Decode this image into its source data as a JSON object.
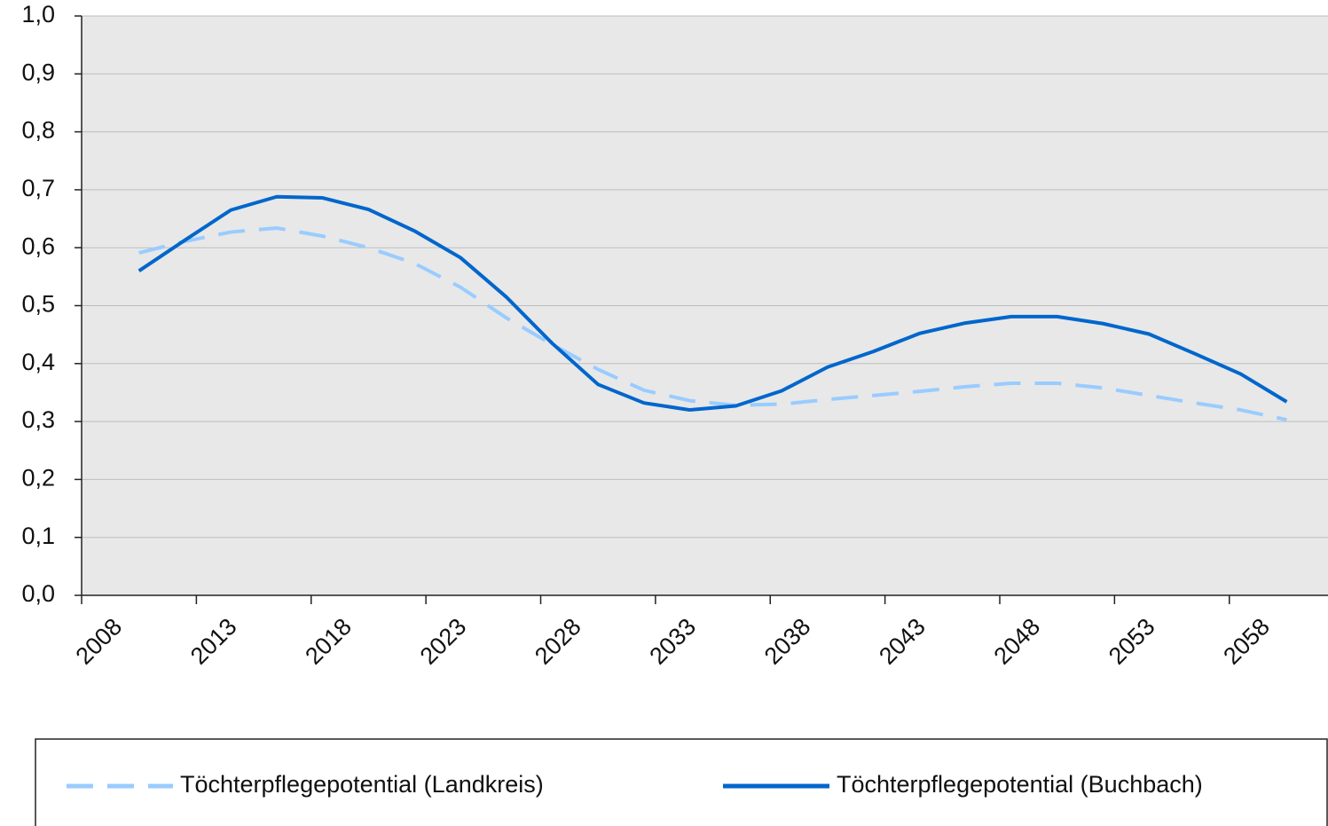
{
  "chart_data": {
    "type": "line",
    "x": [
      2010.5,
      2012.5,
      2014.5,
      2016.5,
      2018.5,
      2020.5,
      2022.5,
      2024.5,
      2026.5,
      2028.5,
      2030.5,
      2032.5,
      2034.5,
      2036.5,
      2038.5,
      2040.5,
      2042.5,
      2044.5,
      2046.5,
      2048.5,
      2050.5,
      2052.5,
      2054.5,
      2056.5,
      2058.5,
      2060.5
    ],
    "series": [
      {
        "name": "Töchterpflegepotential (Landkreis)",
        "color": "#99ccff",
        "dashed": true,
        "values": [
          0.591,
          0.611,
          0.627,
          0.634,
          0.62,
          0.6,
          0.573,
          0.532,
          0.479,
          0.433,
          0.39,
          0.354,
          0.336,
          0.328,
          0.33,
          0.338,
          0.345,
          0.352,
          0.36,
          0.366,
          0.366,
          0.358,
          0.345,
          0.332,
          0.32,
          0.303
        ]
      },
      {
        "name": "Töchterpflegepotential (Buchbach)",
        "color": "#0066cc",
        "dashed": false,
        "values": [
          0.56,
          0.613,
          0.665,
          0.688,
          0.686,
          0.666,
          0.629,
          0.583,
          0.515,
          0.435,
          0.364,
          0.332,
          0.32,
          0.327,
          0.353,
          0.394,
          0.421,
          0.452,
          0.47,
          0.481,
          0.481,
          0.469,
          0.451,
          0.417,
          0.382,
          0.334
        ]
      }
    ],
    "xlim": [
      2008,
      2062.3
    ],
    "xticks": [
      2008,
      2013,
      2018,
      2023,
      2028,
      2033,
      2038,
      2043,
      2048,
      2053,
      2058
    ],
    "ylim": [
      0,
      1
    ],
    "yticks": [
      {
        "value": 0,
        "label": "0,0"
      },
      {
        "value": 0.1,
        "label": "0,1"
      },
      {
        "value": 0.2,
        "label": "0,2"
      },
      {
        "value": 0.3,
        "label": "0,3"
      },
      {
        "value": 0.4,
        "label": "0,4"
      },
      {
        "value": 0.5,
        "label": "0,5"
      },
      {
        "value": 0.6,
        "label": "0,6"
      },
      {
        "value": 0.7,
        "label": "0,7"
      },
      {
        "value": 0.8,
        "label": "0,8"
      },
      {
        "value": 0.9,
        "label": "0,9"
      },
      {
        "value": 1,
        "label": "1,0"
      }
    ],
    "grid": true,
    "legend": "bottom"
  }
}
